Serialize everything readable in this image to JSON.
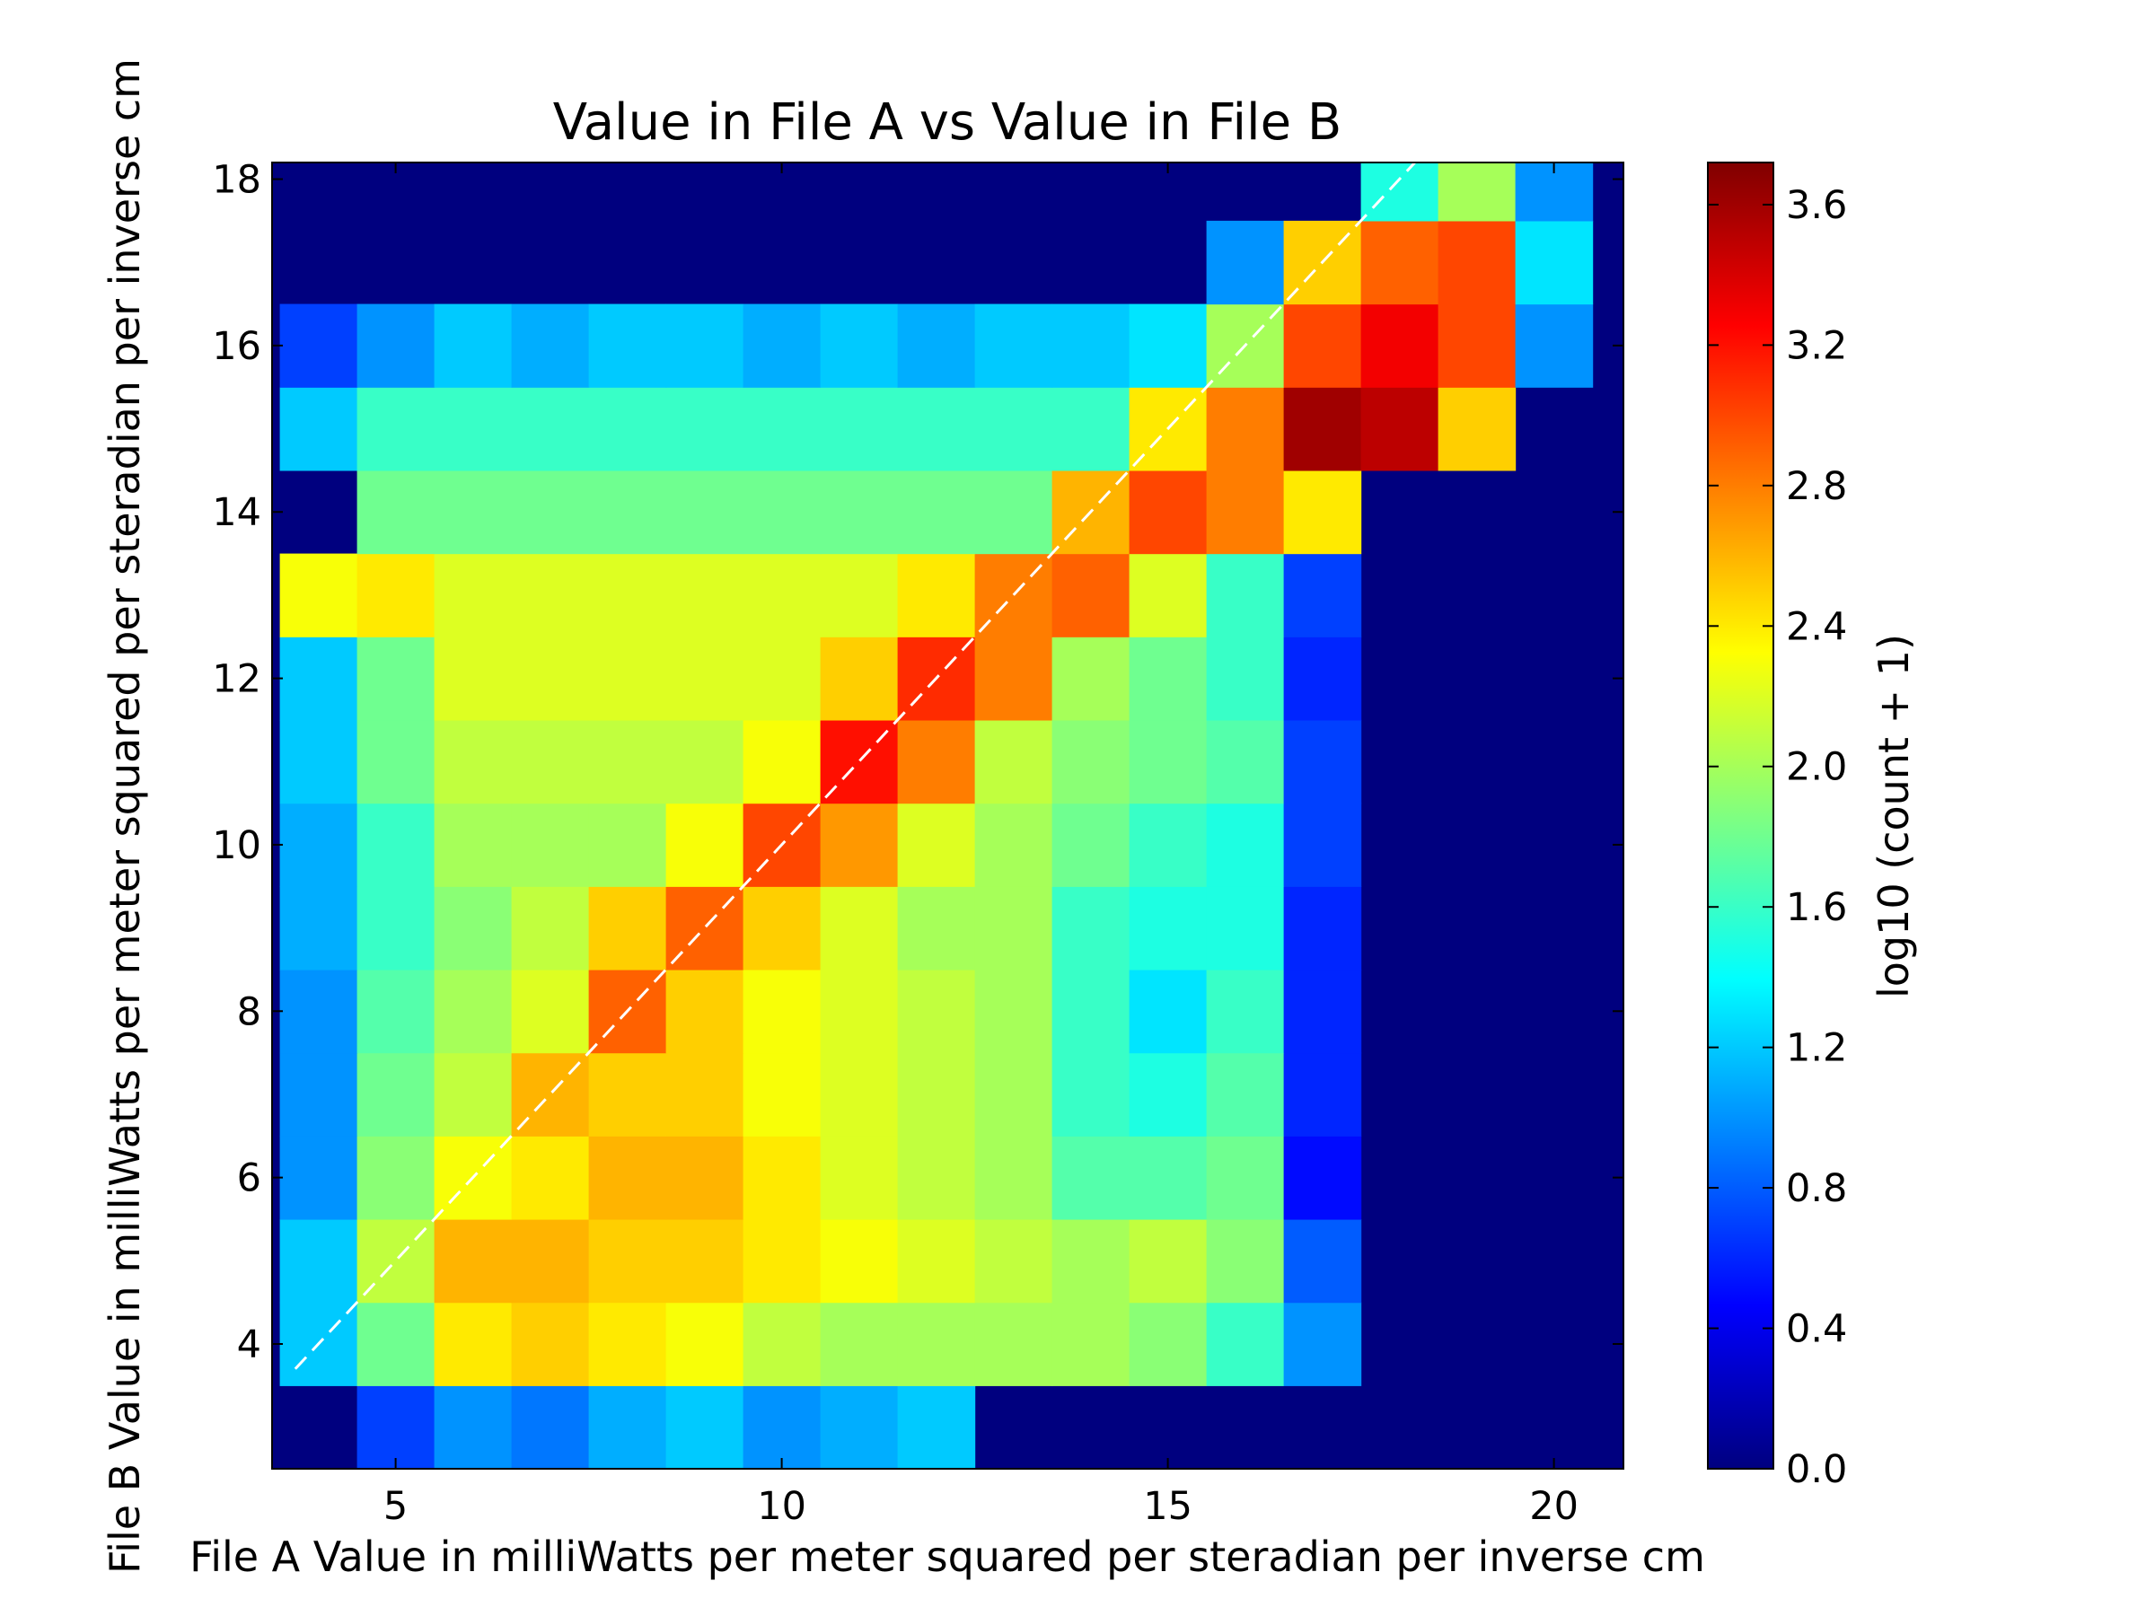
{
  "chart_data": {
    "type": "heatmap",
    "title": "Value in File A vs Value in File B",
    "x_label": "File A Value in milliWatts per meter squared per steradian per inverse cm",
    "y_label": "File B Value in milliWatts per meter squared per steradian per inverse cm",
    "colorbar_label": "log10 (count + 1)",
    "colormap": "jet",
    "background": "#00007f",
    "x": [
      4,
      5,
      6,
      7,
      8,
      9,
      10,
      11,
      12,
      13,
      14,
      15,
      16,
      17,
      18,
      19,
      20
    ],
    "y": [
      3,
      4,
      5,
      6,
      7,
      8,
      9,
      10,
      11,
      12,
      13,
      14,
      15,
      16,
      17,
      18
    ],
    "z": [
      [
        null,
        0.7,
        1.0,
        0.9,
        1.1,
        1.2,
        1.0,
        1.1,
        1.2,
        null,
        null,
        null,
        null,
        null,
        null,
        null,
        null
      ],
      [
        1.2,
        1.8,
        2.4,
        2.5,
        2.4,
        2.3,
        2.1,
        2.0,
        2.0,
        2.0,
        2.0,
        1.9,
        1.6,
        1.0,
        null,
        null,
        null
      ],
      [
        1.2,
        2.1,
        2.6,
        2.6,
        2.5,
        2.5,
        2.4,
        2.3,
        2.2,
        2.1,
        2.0,
        2.1,
        1.9,
        0.8,
        null,
        null,
        null
      ],
      [
        1.0,
        1.9,
        2.3,
        2.4,
        2.6,
        2.6,
        2.4,
        2.2,
        2.1,
        2.0,
        1.7,
        1.7,
        1.8,
        0.5,
        null,
        null,
        null
      ],
      [
        1.0,
        1.8,
        2.1,
        2.6,
        2.5,
        2.5,
        2.3,
        2.2,
        2.1,
        2.0,
        1.6,
        1.5,
        1.7,
        0.6,
        null,
        null,
        null
      ],
      [
        1.0,
        1.7,
        2.0,
        2.2,
        2.9,
        2.5,
        2.3,
        2.2,
        2.1,
        2.0,
        1.6,
        1.3,
        1.6,
        0.6,
        null,
        null,
        null
      ],
      [
        1.1,
        1.6,
        1.9,
        2.1,
        2.5,
        2.9,
        2.5,
        2.2,
        2.0,
        2.0,
        1.6,
        1.5,
        1.5,
        0.6,
        null,
        null,
        null
      ],
      [
        1.1,
        1.6,
        2.0,
        2.0,
        2.0,
        2.3,
        3.0,
        2.7,
        2.2,
        2.0,
        1.8,
        1.6,
        1.5,
        0.7,
        null,
        null,
        null
      ],
      [
        1.2,
        1.8,
        2.1,
        2.1,
        2.1,
        2.1,
        2.3,
        3.2,
        2.8,
        2.1,
        1.9,
        1.8,
        1.7,
        0.7,
        null,
        null,
        null
      ],
      [
        1.2,
        1.8,
        2.2,
        2.2,
        2.2,
        2.2,
        2.2,
        2.5,
        3.1,
        2.8,
        2.0,
        1.8,
        1.6,
        0.6,
        null,
        null,
        null
      ],
      [
        2.3,
        2.4,
        2.2,
        2.2,
        2.2,
        2.2,
        2.2,
        2.2,
        2.4,
        2.8,
        2.9,
        2.2,
        1.6,
        0.7,
        null,
        null,
        null
      ],
      [
        null,
        1.8,
        1.8,
        1.8,
        1.8,
        1.8,
        1.8,
        1.8,
        1.8,
        1.8,
        2.6,
        3.0,
        2.8,
        2.4,
        null,
        null,
        null
      ],
      [
        1.2,
        1.6,
        1.6,
        1.6,
        1.6,
        1.6,
        1.6,
        1.6,
        1.6,
        1.6,
        1.6,
        2.4,
        2.8,
        3.6,
        3.5,
        2.5,
        null
      ],
      [
        0.7,
        1.0,
        1.2,
        1.1,
        1.2,
        1.2,
        1.1,
        1.2,
        1.1,
        1.2,
        1.2,
        1.3,
        2.0,
        3.0,
        3.3,
        3.0,
        1.0
      ],
      [
        null,
        null,
        null,
        null,
        null,
        null,
        null,
        null,
        null,
        null,
        null,
        null,
        1.0,
        2.5,
        2.9,
        3.0,
        1.3
      ],
      [
        null,
        null,
        null,
        null,
        null,
        null,
        null,
        null,
        null,
        null,
        null,
        null,
        null,
        null,
        1.5,
        2.0,
        1.0
      ]
    ],
    "reference_line": {
      "x": [
        3.7,
        18.2
      ],
      "y": [
        3.7,
        18.2
      ],
      "color": "#ffffff",
      "dashed": true
    },
    "xlim": [
      3.4,
      20.9
    ],
    "ylim": [
      2.5,
      18.2
    ],
    "xticks": [
      5,
      10,
      15,
      20
    ],
    "yticks": [
      4,
      6,
      8,
      10,
      12,
      14,
      16,
      18
    ],
    "clim": [
      0,
      3.72
    ],
    "cticks": [
      {
        "value": 0,
        "label": "0.0"
      },
      0.4,
      0.8,
      1.2,
      1.6,
      {
        "value": 2,
        "label": "2.0"
      },
      2.4,
      2.8,
      3.2,
      3.6
    ]
  }
}
